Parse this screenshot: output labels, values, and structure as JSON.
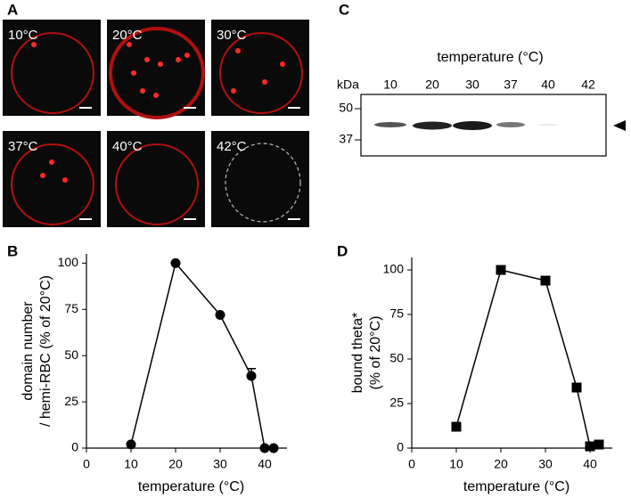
{
  "panel_a": {
    "label": "A",
    "images": [
      {
        "label": "10°C"
      },
      {
        "label": "20°C"
      },
      {
        "label": "30°C"
      },
      {
        "label": "37°C"
      },
      {
        "label": "40°C"
      },
      {
        "label": "42°C"
      }
    ]
  },
  "panel_c": {
    "label": "C",
    "title": "temperature (°C)",
    "unit": "kDa",
    "lanes": [
      10,
      20,
      30,
      37,
      40,
      42
    ],
    "markers": [
      50,
      37
    ]
  },
  "chart_data": [
    {
      "type": "line",
      "label": "B",
      "marker": "circle",
      "color": "#000000",
      "xlabel": "temperature (°C)",
      "ylabel": [
        "domain number",
        "/ hemi-RBC (% of 20°C)"
      ],
      "x": [
        10,
        20,
        30,
        37,
        40,
        42
      ],
      "values": [
        2,
        100,
        72,
        39,
        0,
        0
      ],
      "errors": [
        null,
        null,
        null,
        4,
        null,
        null
      ],
      "xlim": [
        0,
        45
      ],
      "xticks": [
        0,
        10,
        20,
        30,
        40
      ],
      "ylim": [
        0,
        105
      ],
      "yticks": [
        0,
        25,
        50,
        75,
        100
      ]
    },
    {
      "type": "line",
      "label": "D",
      "marker": "square",
      "color": "#000000",
      "xlabel": "temperature (°C)",
      "ylabel": [
        "bound theta*",
        "(% of 20°C)"
      ],
      "x": [
        10,
        20,
        30,
        37,
        40,
        42
      ],
      "values": [
        12,
        100,
        94,
        34,
        1,
        2
      ],
      "xlim": [
        0,
        45
      ],
      "xticks": [
        0,
        10,
        20,
        30,
        40
      ],
      "ylim": [
        0,
        107
      ],
      "yticks": [
        0,
        25,
        50,
        75,
        100
      ]
    }
  ]
}
